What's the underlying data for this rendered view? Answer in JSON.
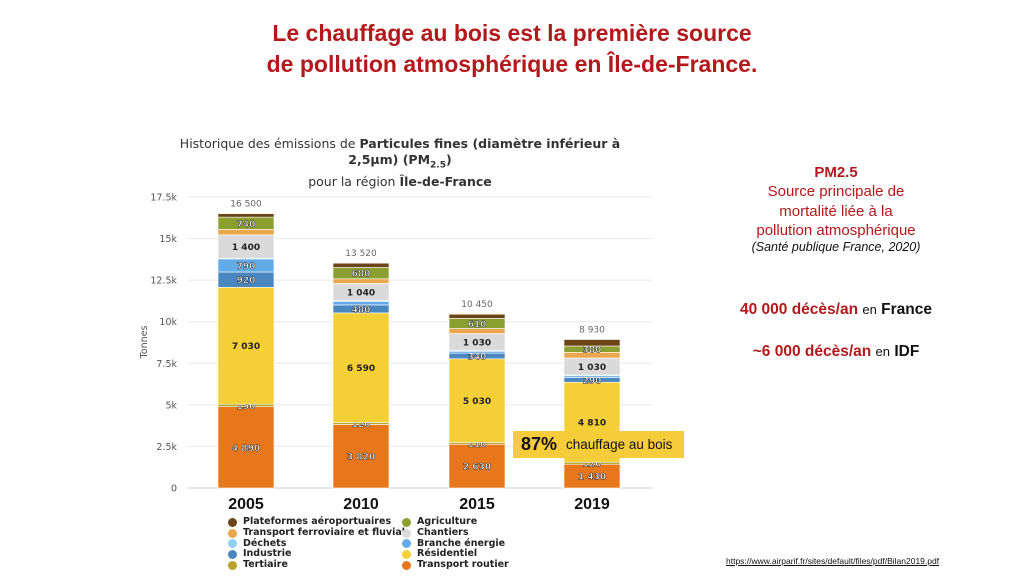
{
  "headline": {
    "line1": "Le chauffage au bois est la première source",
    "line2": "de pollution atmosphérique en Île-de-France."
  },
  "side_panel": {
    "pm_title": "PM2.5",
    "pm_body_lines": [
      "Source principale de",
      "mortalité liée à la",
      "pollution atmosphérique"
    ],
    "citation": "(Santé publique France, 2020)",
    "stat1": {
      "value": "40 000 décès/an",
      "connector": "en",
      "place": "France"
    },
    "stat2": {
      "value": "~6 000 décès/an",
      "connector": "en",
      "place": "IDF"
    }
  },
  "callout": {
    "percent": "87%",
    "text": "chauffage au bois",
    "color": "#f7cc3b"
  },
  "source_link": "https://www.airparif.fr/sites/default/files/pdf/Bilan2019.pdf",
  "chart_data": {
    "type": "bar",
    "stacked": true,
    "title_parts": {
      "prefix": "Historique des émissions de ",
      "bold1": "Particules fines (diamètre inférieur à",
      "bold2": "2,5µm) (PM",
      "sub": "2.5",
      "bold2_end": ")",
      "line3_prefix": "pour la région ",
      "line3_bold": "Île-de-France"
    },
    "xlabel": "",
    "ylabel": "Tonnes",
    "ylim": [
      0,
      17500
    ],
    "yticks": [
      0,
      2500,
      5000,
      7500,
      10000,
      12500,
      15000,
      17500
    ],
    "ytick_labels": [
      "0",
      "2.5k",
      "5k",
      "7.5k",
      "10k",
      "12.5k",
      "15k",
      "17.5k"
    ],
    "grid": true,
    "categories": [
      "2005",
      "2010",
      "2015",
      "2019"
    ],
    "totals": [
      16500,
      13520,
      10450,
      8930
    ],
    "total_labels": [
      "16 500",
      "13 520",
      "10 450",
      "8 930"
    ],
    "series": [
      {
        "name": "Transport routier",
        "color": "#e8771b",
        "values": [
          4890,
          3820,
          2630,
          1430
        ],
        "labels": [
          "4 890",
          "3 820",
          "2 630",
          "1 430"
        ]
      },
      {
        "name": "Tertiaire",
        "color": "#b5a32a",
        "values": [
          150,
          120,
          110,
          120
        ],
        "labels": [
          "150",
          "120",
          "110",
          "120"
        ]
      },
      {
        "name": "Résidentiel",
        "color": "#f4cf35",
        "values": [
          7030,
          6590,
          5030,
          4810
        ],
        "labels": [
          "7 030",
          "6 590",
          "5 030",
          "4 810"
        ]
      },
      {
        "name": "Industrie",
        "color": "#4a86c0",
        "values": [
          920,
          480,
          340,
          290
        ],
        "labels": [
          "920",
          "480",
          "340",
          "290"
        ]
      },
      {
        "name": "Branche énergie",
        "color": "#62aae8",
        "values": [
          790,
          220,
          130,
          120
        ],
        "labels": [
          "790",
          "",
          "",
          ""
        ]
      },
      {
        "name": "Déchets",
        "color": "#8fd0f5",
        "values": [
          40,
          30,
          20,
          20
        ],
        "labels": [
          "",
          "",
          "",
          ""
        ]
      },
      {
        "name": "Chantiers",
        "color": "#dadada",
        "values": [
          1400,
          1040,
          1030,
          1030
        ],
        "labels": [
          "1 400",
          "1 040",
          "1 030",
          "1 030"
        ]
      },
      {
        "name": "Transport ferroviaire et fluvial",
        "color": "#eba64b",
        "values": [
          330,
          280,
          300,
          340
        ],
        "labels": [
          "",
          "",
          "",
          ""
        ]
      },
      {
        "name": "Agriculture",
        "color": "#8ca031",
        "values": [
          740,
          680,
          610,
          380
        ],
        "labels": [
          "740",
          "680",
          "610",
          "380"
        ]
      },
      {
        "name": "Plateformes aéroportuaires",
        "color": "#6b4418",
        "values": [
          210,
          260,
          250,
          390
        ],
        "labels": [
          "",
          "",
          "",
          ""
        ]
      }
    ],
    "legend": {
      "placement": "bottom",
      "column1": [
        "Plateformes aéroportuaires",
        "Transport ferroviaire et fluvial",
        "Déchets",
        "Industrie",
        "Tertiaire"
      ],
      "column2": [
        "Agriculture",
        "Chantiers",
        "Branche énergie",
        "Résidentiel",
        "Transport routier"
      ]
    }
  }
}
